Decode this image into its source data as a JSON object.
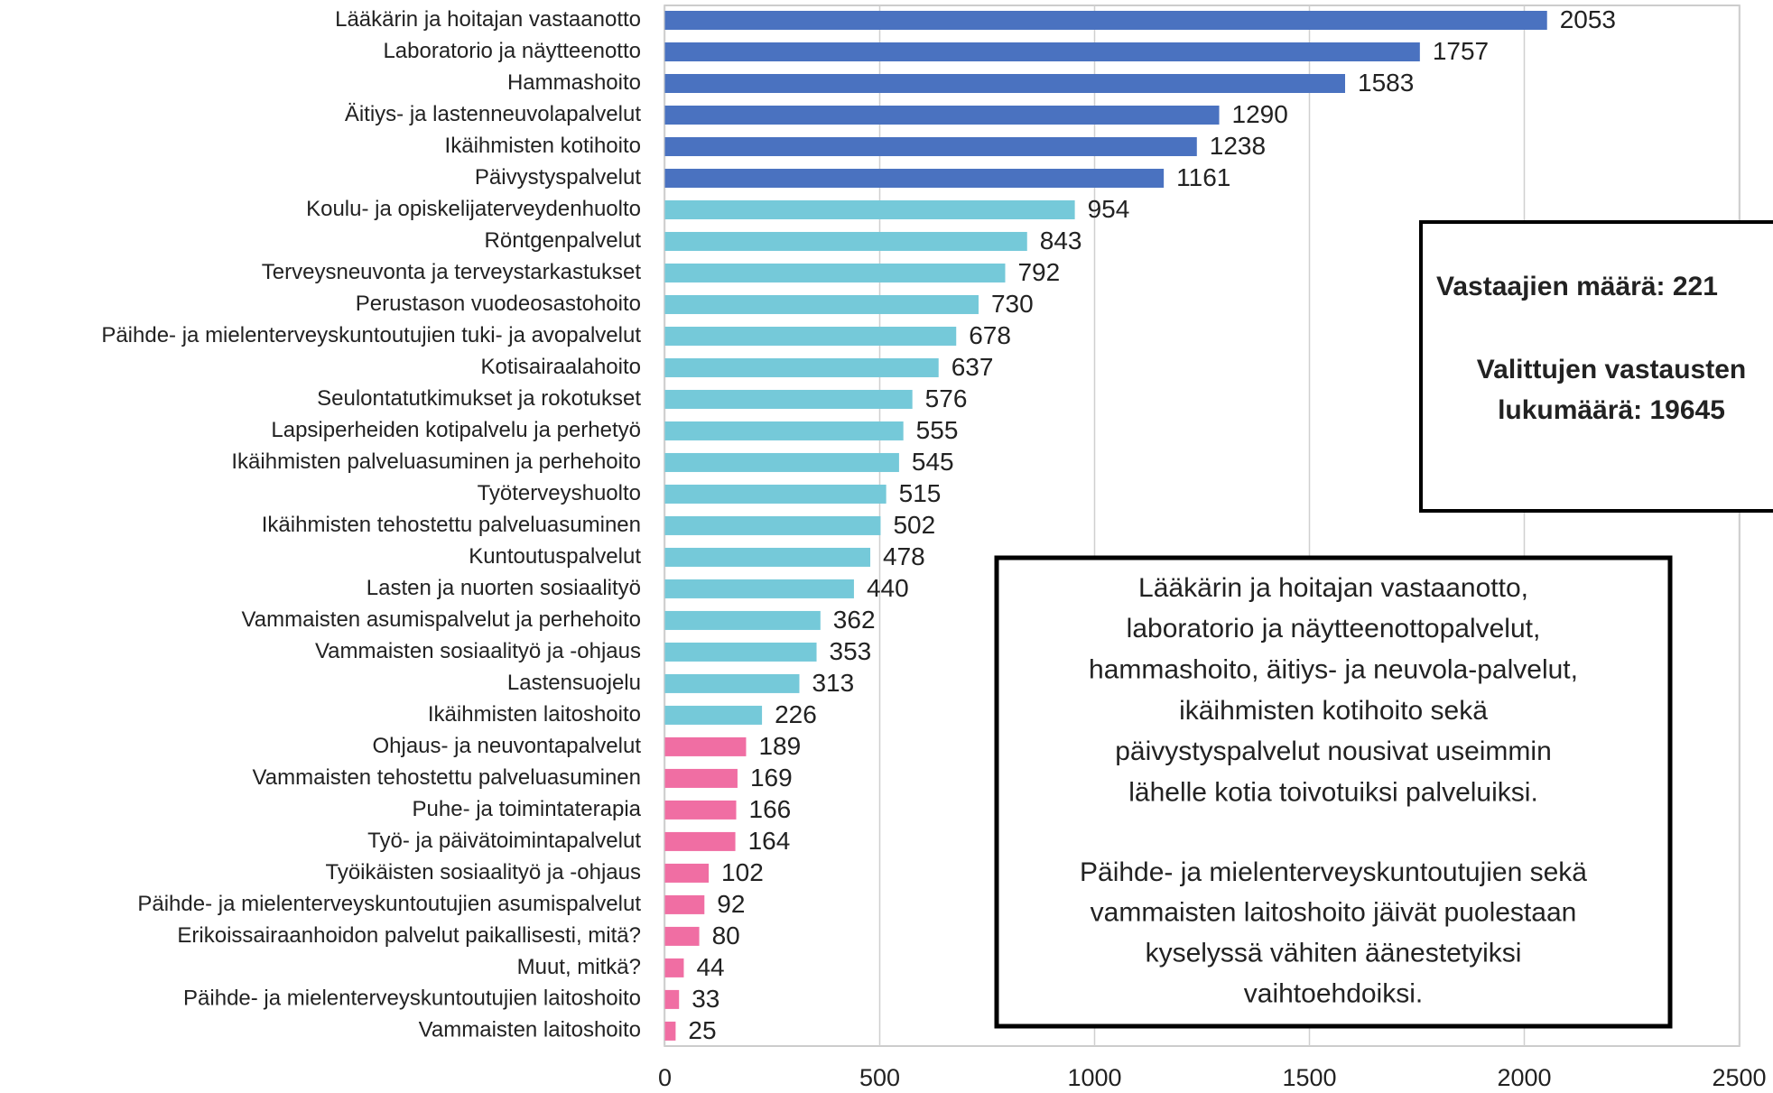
{
  "chart_data": {
    "type": "bar",
    "orientation": "horizontal",
    "categories": [
      "Lääkärin ja hoitajan vastaanotto",
      "Laboratorio ja näytteenotto",
      "Hammashoito",
      "Äitiys- ja lastenneuvolapalvelut",
      "Ikäihmisten kotihoito",
      "Päivystyspalvelut",
      "Koulu- ja opiskelijaterveydenhuolto",
      "Röntgenpalvelut",
      "Terveysneuvonta ja terveystarkastukset",
      "Perustason vuodeosastohoito",
      "Päihde- ja mielenterveyskuntoutujien tuki- ja avopalvelut",
      "Kotisairaalahoito",
      "Seulontatutkimukset ja rokotukset",
      "Lapsiperheiden kotipalvelu ja perhetyö",
      "Ikäihmisten palveluasuminen ja perhehoito",
      "Työterveyshuolto",
      "Ikäihmisten tehostettu palveluasuminen",
      "Kuntoutuspalvelut",
      "Lasten ja nuorten sosiaalityö",
      "Vammaisten asumispalvelut ja perhehoito",
      "Vammaisten sosiaalityö ja -ohjaus",
      "Lastensuojelu",
      "Ikäihmisten laitoshoito",
      "Ohjaus- ja neuvontapalvelut",
      "Vammaisten tehostettu palveluasuminen",
      "Puhe- ja toimintaterapia",
      "Työ- ja päivätoimintapalvelut",
      "Työikäisten sosiaalityö ja -ohjaus",
      "Päihde- ja mielenterveyskuntoutujien asumispalvelut",
      "Erikoissairaanhoidon palvelut paikallisesti, mitä?",
      "Muut, mitkä?",
      "Päihde- ja mielenterveyskuntoutujien laitoshoito",
      "Vammaisten laitoshoito"
    ],
    "values": [
      2053,
      1757,
      1583,
      1290,
      1238,
      1161,
      954,
      843,
      792,
      730,
      678,
      637,
      576,
      555,
      545,
      515,
      502,
      478,
      440,
      362,
      353,
      313,
      226,
      189,
      169,
      166,
      164,
      102,
      92,
      80,
      44,
      33,
      25
    ],
    "colors": [
      "#4a72c0",
      "#4a72c0",
      "#4a72c0",
      "#4a72c0",
      "#4a72c0",
      "#4a72c0",
      "#75c9d9",
      "#75c9d9",
      "#75c9d9",
      "#75c9d9",
      "#75c9d9",
      "#75c9d9",
      "#75c9d9",
      "#75c9d9",
      "#75c9d9",
      "#75c9d9",
      "#75c9d9",
      "#75c9d9",
      "#75c9d9",
      "#75c9d9",
      "#75c9d9",
      "#75c9d9",
      "#75c9d9",
      "#f06ea3",
      "#f06ea3",
      "#f06ea3",
      "#f06ea3",
      "#f06ea3",
      "#f06ea3",
      "#f06ea3",
      "#f06ea3",
      "#f06ea3",
      "#f06ea3"
    ],
    "xlim": [
      0,
      2500
    ],
    "xticks": [
      0,
      500,
      1000,
      1500,
      2000,
      2500
    ],
    "grid": true,
    "info_box": {
      "lines": [
        "Vastaajien määrä: 221",
        "Valittujen vastausten",
        "lukumäärä: 19645"
      ]
    },
    "annotation": {
      "blue_lines": [
        "Lääkärin ja hoitajan vastaanotto,",
        "laboratorio ja näytteenottopalvelut,",
        "hammashoito, äitiys- ja neuvola-palvelut,",
        "ikäihmisten kotihoito sekä",
        "päivystyspalvelut nousivat useimmin",
        "lähelle kotia toivotuiksi palveluiksi."
      ],
      "pink_lines": [
        "Päihde- ja mielenterveyskuntoutujien sekä",
        "vammaisten laitoshoito jäivät puolestaan",
        "kyselyssä vähiten äänestetyiksi",
        "vaihtoehdoiksi."
      ]
    }
  }
}
